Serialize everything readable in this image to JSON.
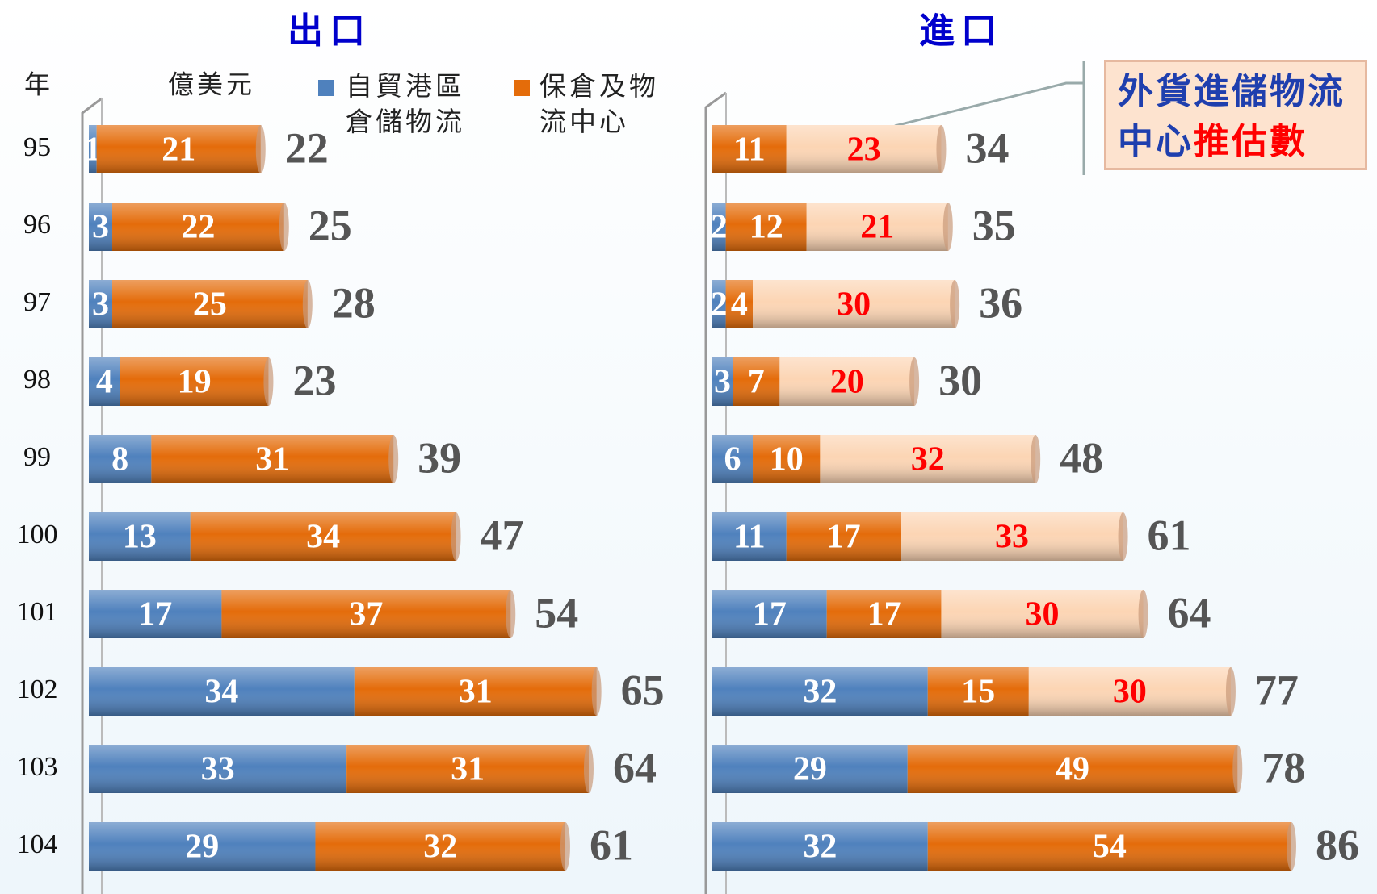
{
  "chart_data": [
    {
      "type": "bar",
      "orientation": "horizontal",
      "stacked": true,
      "title": "出口",
      "category_label": "年",
      "unit": "億美元",
      "categories": [
        "95",
        "96",
        "97",
        "98",
        "99",
        "100",
        "101",
        "102",
        "103",
        "104"
      ],
      "series": [
        {
          "name": "自貿港區倉儲物流",
          "color": "#4f81bd",
          "values": [
            1,
            3,
            3,
            4,
            8,
            13,
            17,
            34,
            33,
            29
          ]
        },
        {
          "name": "保倉及物流中心",
          "color": "#e46c0a",
          "values": [
            21,
            22,
            25,
            19,
            31,
            34,
            37,
            31,
            31,
            32
          ]
        }
      ],
      "totals": [
        22,
        25,
        28,
        23,
        39,
        47,
        54,
        65,
        64,
        61
      ],
      "xlim": [
        0,
        70
      ]
    },
    {
      "type": "bar",
      "orientation": "horizontal",
      "stacked": true,
      "title": "進口",
      "series": [
        {
          "color": "#4f81bd",
          "values": [
            0,
            2,
            2,
            3,
            6,
            11,
            17,
            32,
            29,
            32
          ]
        },
        {
          "color": "#e46c0a",
          "values": [
            11,
            12,
            4,
            7,
            10,
            17,
            17,
            15,
            49,
            54
          ]
        },
        {
          "color": "#fcd5b4",
          "label_color": "#ff0000",
          "values": [
            23,
            21,
            30,
            20,
            32,
            33,
            30,
            30,
            null,
            null
          ]
        }
      ],
      "annotation": [
        "外貨進儲物流",
        "中心",
        "推估數"
      ],
      "totals": [
        34,
        35,
        36,
        30,
        48,
        61,
        64,
        77,
        78,
        86
      ],
      "xlim": [
        0,
        95
      ]
    }
  ]
}
